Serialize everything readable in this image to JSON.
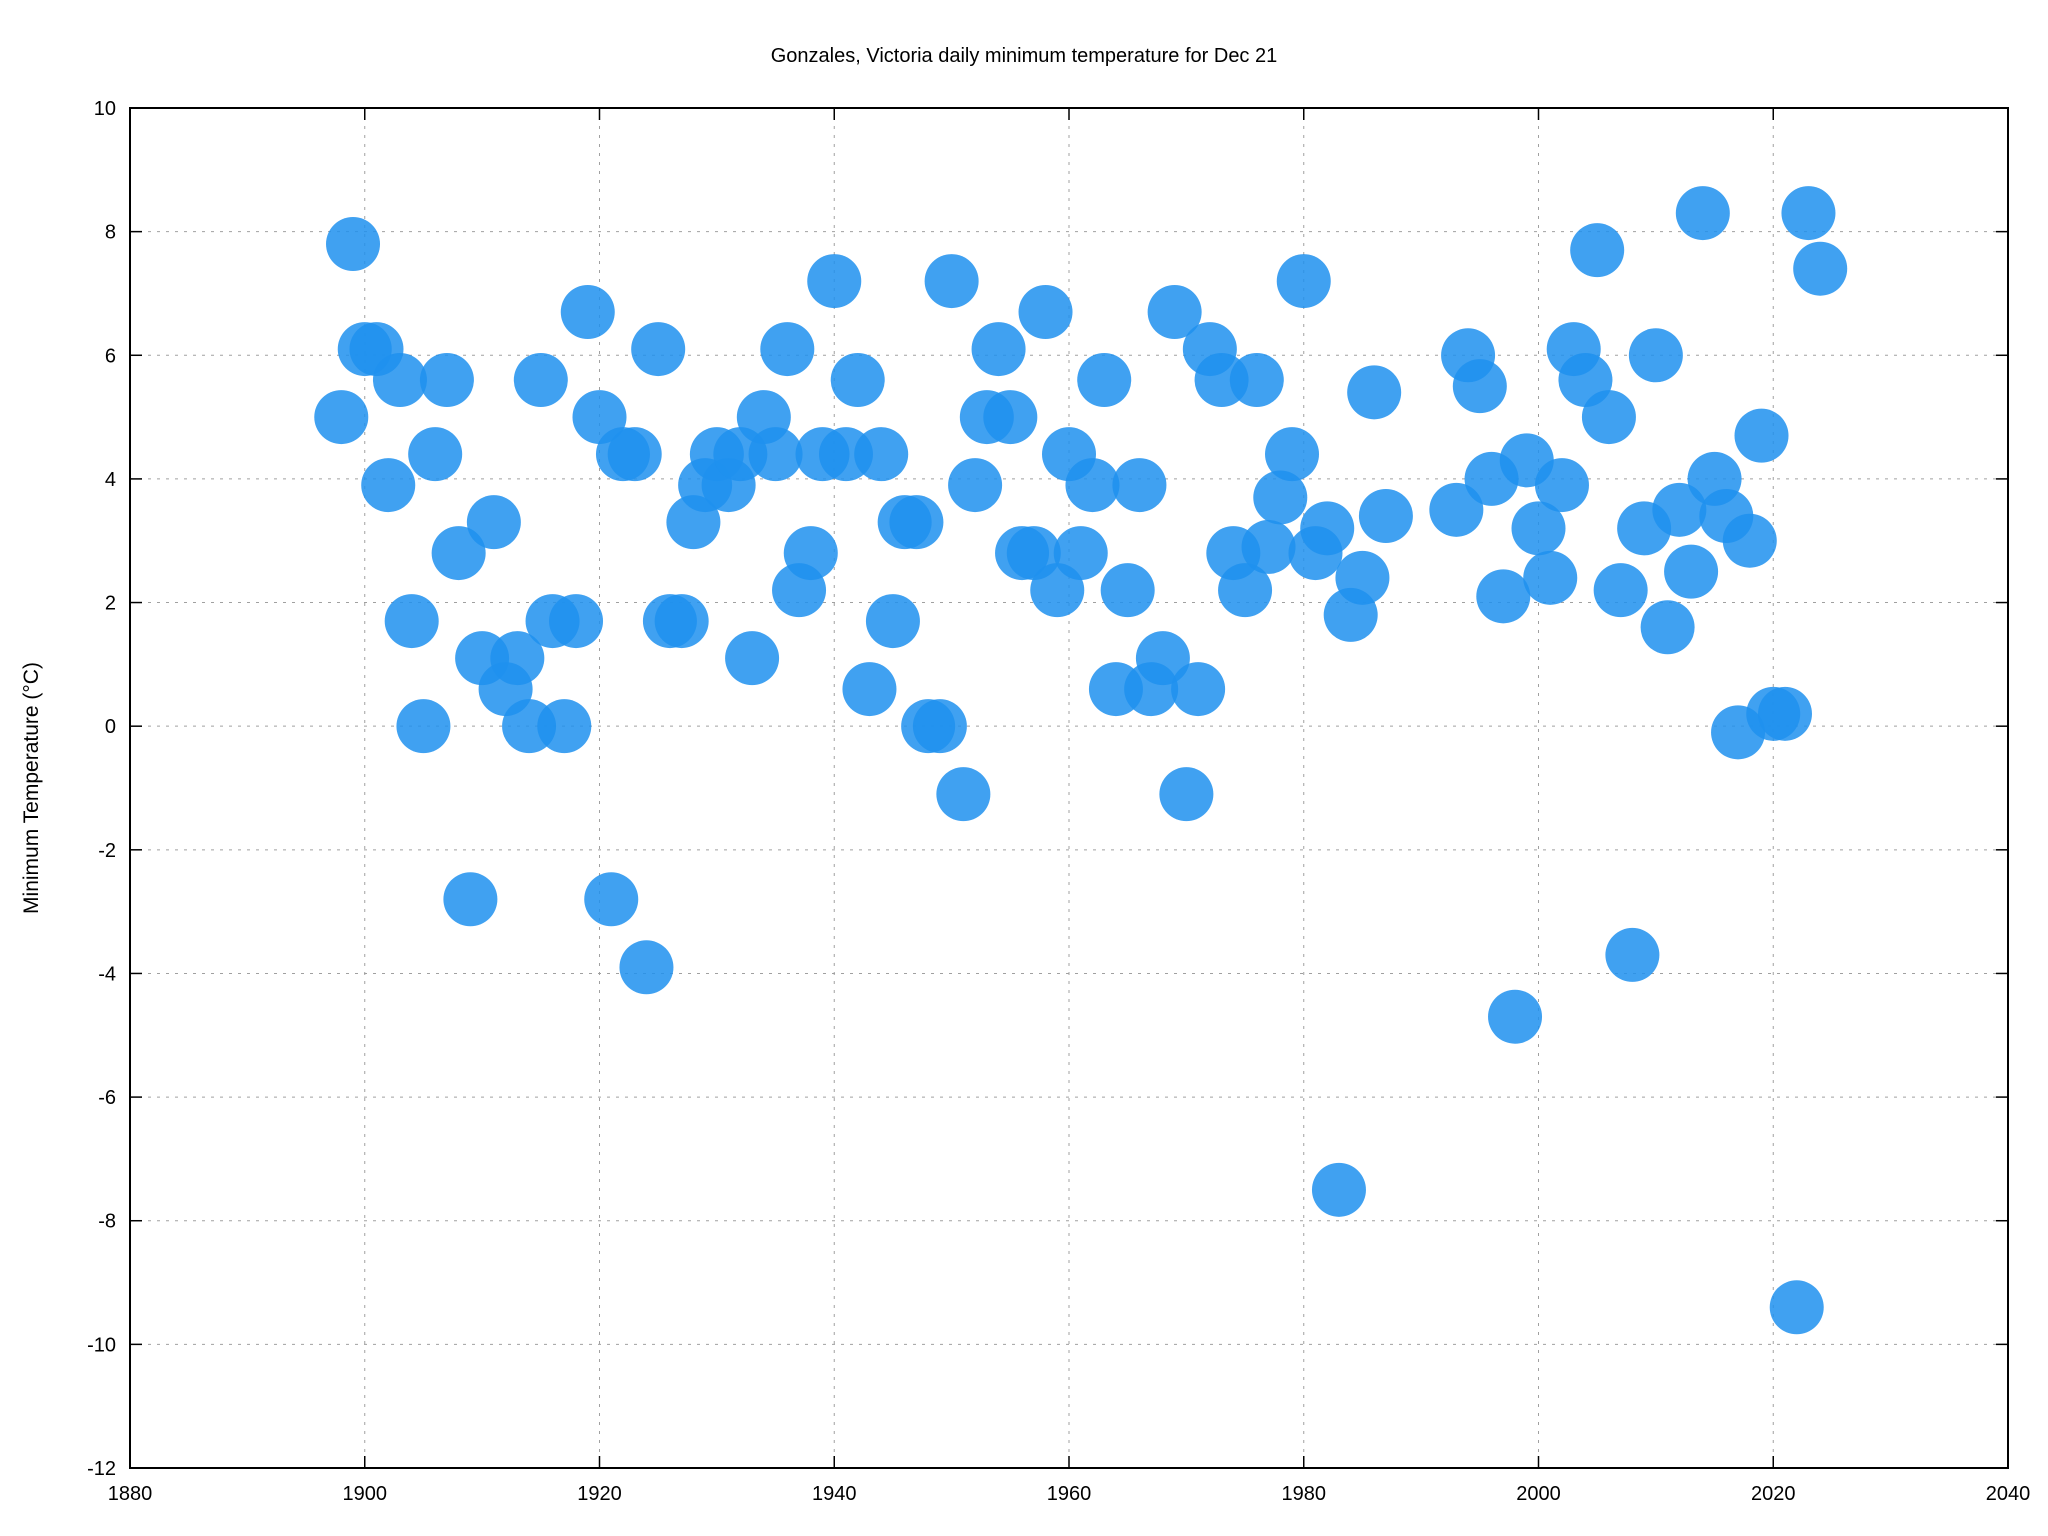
{
  "chart_data": {
    "type": "scatter",
    "title": "Gonzales, Victoria daily minimum temperature for Dec 21",
    "xlabel": "",
    "ylabel": "Minimum Temperature (°C)",
    "xlim": [
      1880,
      2040
    ],
    "ylim": [
      -12,
      10
    ],
    "xticks": [
      1880,
      1900,
      1920,
      1940,
      1960,
      1980,
      2000,
      2020,
      2040
    ],
    "yticks": [
      -12,
      -10,
      -8,
      -6,
      -4,
      -2,
      0,
      2,
      4,
      6,
      8,
      10
    ],
    "grid": true,
    "point_color": "#1E90EE",
    "series": [
      {
        "points": [
          [
            1898,
            5.0
          ],
          [
            1899,
            7.8
          ],
          [
            1900,
            6.1
          ],
          [
            1901,
            6.1
          ],
          [
            1902,
            3.9
          ],
          [
            1903,
            5.6
          ],
          [
            1904,
            1.7
          ],
          [
            1905,
            0.0
          ],
          [
            1906,
            4.4
          ],
          [
            1907,
            5.6
          ],
          [
            1908,
            2.8
          ],
          [
            1909,
            -2.8
          ],
          [
            1910,
            1.1
          ],
          [
            1911,
            3.3
          ],
          [
            1912,
            0.6
          ],
          [
            1913,
            1.1
          ],
          [
            1914,
            0.0
          ],
          [
            1915,
            5.6
          ],
          [
            1916,
            1.7
          ],
          [
            1917,
            0.0
          ],
          [
            1918,
            1.7
          ],
          [
            1919,
            6.7
          ],
          [
            1920,
            5.0
          ],
          [
            1921,
            -2.8
          ],
          [
            1922,
            4.4
          ],
          [
            1923,
            4.4
          ],
          [
            1924,
            -3.9
          ],
          [
            1925,
            6.1
          ],
          [
            1926,
            1.7
          ],
          [
            1927,
            1.7
          ],
          [
            1928,
            3.3
          ],
          [
            1929,
            3.9
          ],
          [
            1930,
            4.4
          ],
          [
            1931,
            3.9
          ],
          [
            1932,
            4.4
          ],
          [
            1933,
            1.1
          ],
          [
            1934,
            5.0
          ],
          [
            1935,
            4.4
          ],
          [
            1936,
            6.1
          ],
          [
            1937,
            2.2
          ],
          [
            1938,
            2.8
          ],
          [
            1939,
            4.4
          ],
          [
            1940,
            7.2
          ],
          [
            1941,
            4.4
          ],
          [
            1942,
            5.6
          ],
          [
            1943,
            0.6
          ],
          [
            1944,
            4.4
          ],
          [
            1945,
            1.7
          ],
          [
            1946,
            3.3
          ],
          [
            1947,
            3.3
          ],
          [
            1948,
            0.0
          ],
          [
            1949,
            0.0
          ],
          [
            1950,
            7.2
          ],
          [
            1951,
            -1.1
          ],
          [
            1952,
            3.9
          ],
          [
            1953,
            5.0
          ],
          [
            1954,
            6.1
          ],
          [
            1955,
            5.0
          ],
          [
            1956,
            2.8
          ],
          [
            1957,
            2.8
          ],
          [
            1958,
            6.7
          ],
          [
            1959,
            2.2
          ],
          [
            1960,
            4.4
          ],
          [
            1961,
            2.8
          ],
          [
            1962,
            3.9
          ],
          [
            1963,
            5.6
          ],
          [
            1964,
            0.6
          ],
          [
            1965,
            2.2
          ],
          [
            1966,
            3.9
          ],
          [
            1967,
            0.6
          ],
          [
            1968,
            1.1
          ],
          [
            1969,
            6.7
          ],
          [
            1970,
            -1.1
          ],
          [
            1971,
            0.6
          ],
          [
            1972,
            6.1
          ],
          [
            1973,
            5.6
          ],
          [
            1974,
            2.8
          ],
          [
            1975,
            2.2
          ],
          [
            1976,
            5.6
          ],
          [
            1977,
            2.9
          ],
          [
            1978,
            3.7
          ],
          [
            1979,
            4.4
          ],
          [
            1980,
            7.2
          ],
          [
            1981,
            2.8
          ],
          [
            1982,
            3.2
          ],
          [
            1983,
            -7.5
          ],
          [
            1984,
            1.8
          ],
          [
            1985,
            2.4
          ],
          [
            1986,
            5.4
          ],
          [
            1987,
            3.4
          ],
          [
            1993,
            3.5
          ],
          [
            1994,
            6.0
          ],
          [
            1995,
            5.5
          ],
          [
            1996,
            4.0
          ],
          [
            1997,
            2.1
          ],
          [
            1998,
            -4.7
          ],
          [
            1999,
            4.3
          ],
          [
            2000,
            3.2
          ],
          [
            2001,
            2.4
          ],
          [
            2002,
            3.9
          ],
          [
            2003,
            6.1
          ],
          [
            2004,
            5.6
          ],
          [
            2005,
            7.7
          ],
          [
            2006,
            5.0
          ],
          [
            2007,
            2.2
          ],
          [
            2008,
            -3.7
          ],
          [
            2009,
            3.2
          ],
          [
            2010,
            6.0
          ],
          [
            2011,
            1.6
          ],
          [
            2012,
            3.5
          ],
          [
            2013,
            2.5
          ],
          [
            2014,
            8.3
          ],
          [
            2015,
            4.0
          ],
          [
            2016,
            3.4
          ],
          [
            2017,
            -0.1
          ],
          [
            2018,
            3.0
          ],
          [
            2019,
            4.7
          ],
          [
            2020,
            0.2
          ],
          [
            2021,
            0.2
          ],
          [
            2022,
            -9.4
          ],
          [
            2023,
            8.3
          ],
          [
            2024,
            7.4
          ]
        ]
      }
    ]
  }
}
